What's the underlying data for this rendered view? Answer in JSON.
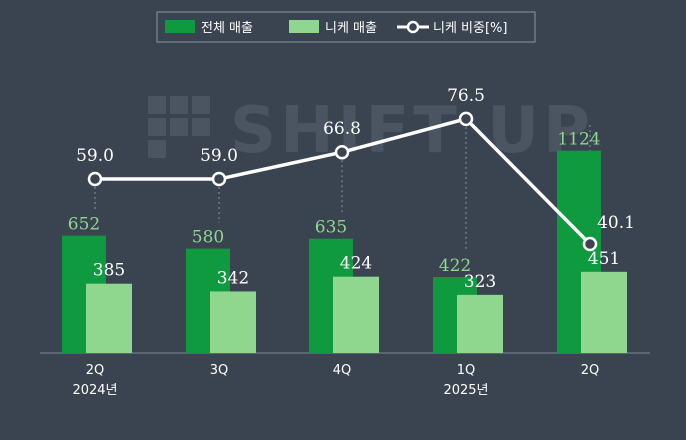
{
  "chart_data": {
    "type": "bar",
    "categories": [
      "2Q",
      "3Q",
      "4Q",
      "1Q",
      "2Q"
    ],
    "category_years": [
      "2024년",
      "",
      "",
      "2025년",
      ""
    ],
    "series": [
      {
        "name": "전체 매출",
        "values": [
          652,
          580,
          635,
          422,
          1124
        ],
        "color": "#109a3f"
      },
      {
        "name": "니케 매출",
        "values": [
          385,
          342,
          424,
          323,
          451
        ],
        "color": "#8fd68e"
      },
      {
        "name": "니케 비중[%]",
        "values": [
          59.0,
          59.0,
          66.8,
          76.5,
          40.1
        ],
        "color": "#ffffff",
        "type": "line"
      }
    ],
    "legend_position": "top",
    "watermark": "SHIFT UP",
    "grid": false
  }
}
